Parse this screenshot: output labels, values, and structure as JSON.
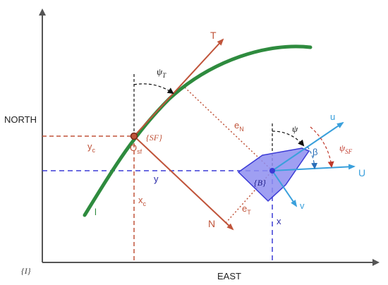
{
  "axes": {
    "north_label": "NORTH",
    "east_label": "EAST",
    "frame_label": "{I}"
  },
  "path": {
    "label": "l"
  },
  "serret_frenet": {
    "origin_label": "O",
    "origin_sub": "sf",
    "frame_label": "{SF}",
    "tangent_label": "T",
    "normal_label": "N",
    "xc_label": "x",
    "xc_sub": "c",
    "yc_label": "y",
    "yc_sub": "c",
    "psi_t_label": "ψ",
    "psi_t_sub": "T"
  },
  "errors": {
    "en_label": "e",
    "en_sub": "N",
    "et_label": "e",
    "et_sub": "T"
  },
  "vehicle": {
    "frame_label": "{B}",
    "x_label": "x",
    "y_label": "y",
    "u_label": "u",
    "v_label": "v",
    "U_label": "U",
    "psi_label": "ψ",
    "beta_label": "β",
    "psi_sf_label": "ψ",
    "psi_sf_sub": "SF"
  },
  "colors": {
    "axis": "#555555",
    "path": "#2e8b3e",
    "frame_sf": "#c0543a",
    "body_blue": "#3b3bd6",
    "velocity": "#3aa0dc",
    "hull_fill": "#8e8ef0"
  }
}
